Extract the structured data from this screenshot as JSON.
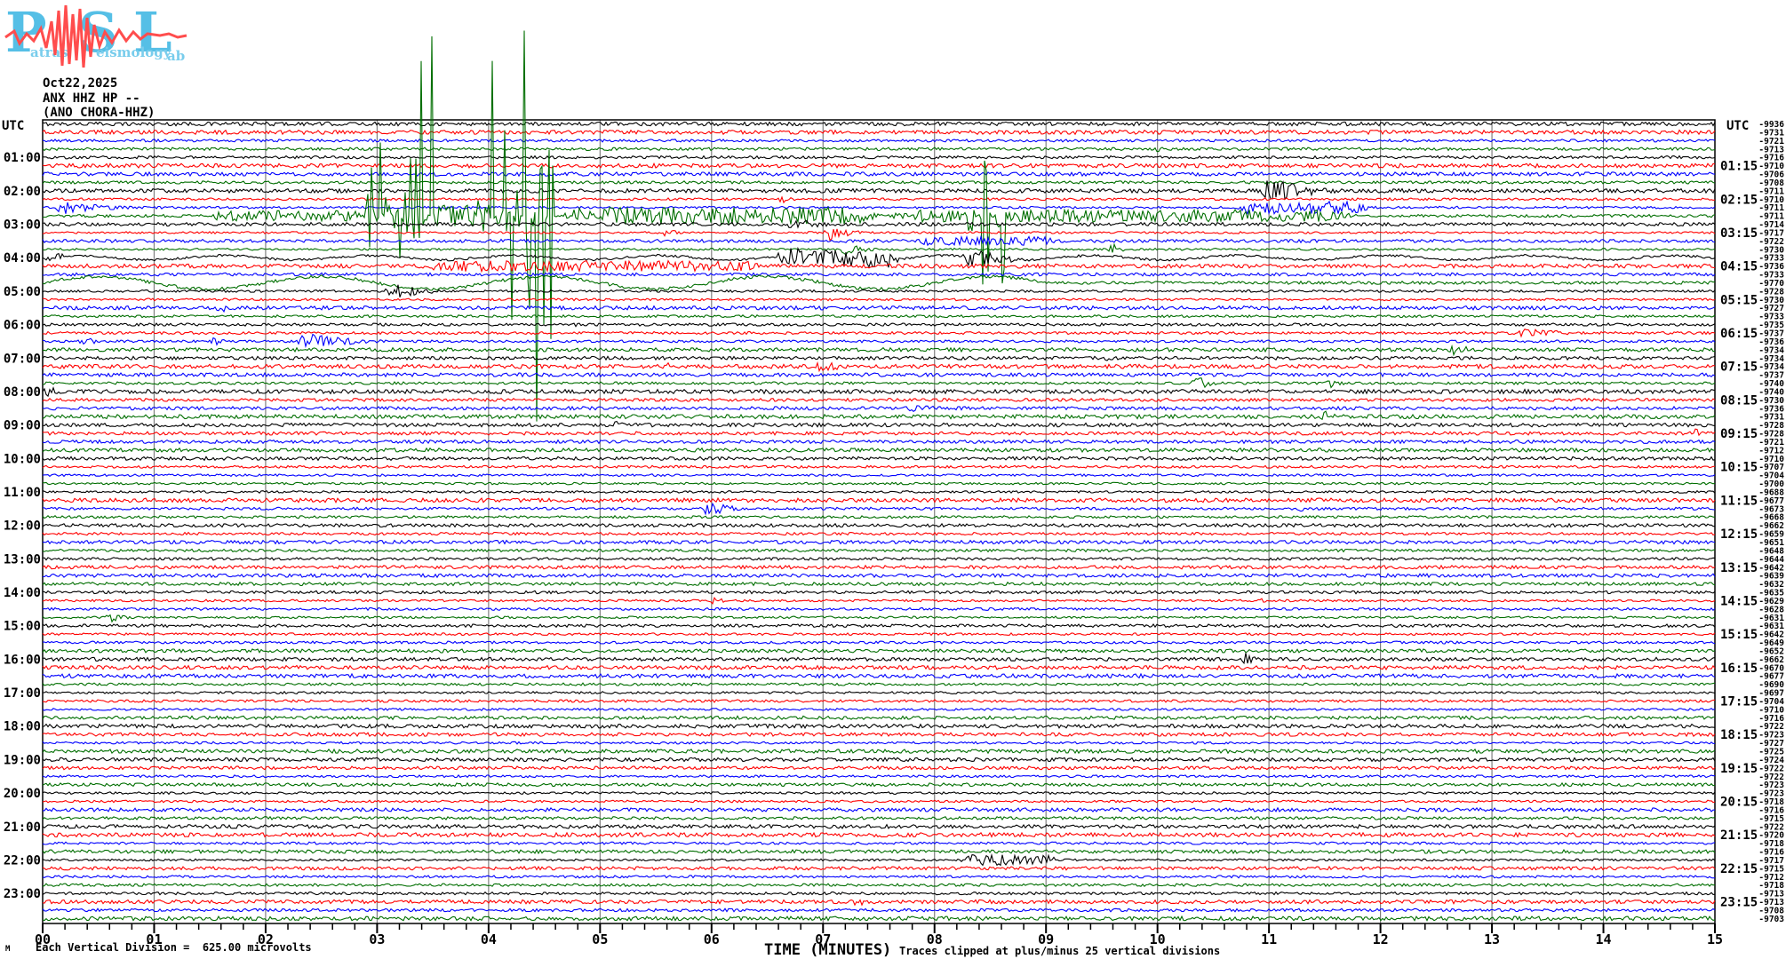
{
  "logo": {
    "letters": [
      "P",
      "S",
      "L"
    ],
    "words": [
      "atras",
      "eismology",
      "ab"
    ]
  },
  "header": {
    "date": "Oct22,2025",
    "station": "ANX HHZ HP --",
    "station_paren": "(ANO CHORA-HHZ)"
  },
  "axes": {
    "utc_left": "UTC",
    "utc_right": "UTC",
    "xlabel": "TIME (MINUTES)",
    "x_ticks": [
      "00",
      "01",
      "02",
      "03",
      "04",
      "05",
      "06",
      "07",
      "08",
      "09",
      "10",
      "11",
      "12",
      "13",
      "14",
      "15"
    ]
  },
  "footer": {
    "mark": "M",
    "scale_note": "Each Vertical Division =  625.00 microvolts",
    "clip_note": "Traces clipped at plus/minus 25 vertical divisions"
  },
  "chart_data": {
    "type": "line",
    "title": "ANX HHZ HP -- (ANO CHORA-HHZ) Oct22,2025 helicorder",
    "x_range_minutes": [
      0,
      15
    ],
    "minutes_per_line": 15,
    "lines_per_hour": 4,
    "num_traces": 96,
    "clip_divisions": 25,
    "volts_per_division": "625.00 microvolts",
    "color_cycle": [
      "black",
      "red",
      "blue",
      "green"
    ],
    "colors": {
      "black": "#000000",
      "red": "#ff0000",
      "blue": "#0000ff",
      "green": "#006e00",
      "grid": "#808080"
    },
    "left_hour_labels": [
      "01:00",
      "02:00",
      "03:00",
      "04:00",
      "05:00",
      "06:00",
      "07:00",
      "08:00",
      "09:00",
      "10:00",
      "11:00",
      "12:00",
      "13:00",
      "14:00",
      "15:00",
      "16:00",
      "17:00",
      "18:00",
      "19:00",
      "20:00",
      "21:00",
      "22:00",
      "23:00"
    ],
    "right_hour_labels": [
      "01:15",
      "02:15",
      "03:15",
      "04:15",
      "05:15",
      "06:15",
      "07:15",
      "08:15",
      "09:15",
      "10:15",
      "11:15",
      "12:15",
      "13:15",
      "14:15",
      "15:15",
      "16:15",
      "17:15",
      "18:15",
      "19:15",
      "20:15",
      "21:15",
      "22:15",
      "23:15"
    ],
    "trace_offset_values": [
      -9936,
      -9731,
      -9721,
      -9713,
      -9716,
      -9710,
      -9706,
      -9708,
      -9711,
      -9710,
      -9711,
      -9711,
      -9714,
      -9717,
      -9722,
      -9730,
      -9733,
      -9736,
      -9733,
      -9770,
      -9728,
      -9730,
      -9727,
      -9733,
      -9735,
      -9737,
      -9736,
      -9734,
      -9734,
      -9734,
      -9737,
      -9740,
      -9740,
      -9730,
      -9736,
      -9731,
      -9728,
      -9728,
      -9721,
      -9712,
      -9710,
      -9707,
      -9704,
      -9700,
      -9688,
      -9677,
      -9673,
      -9668,
      -9662,
      -9659,
      -9651,
      -9648,
      -9644,
      -9642,
      -9639,
      -9632,
      -9635,
      -9629,
      -9628,
      -9631,
      -9631,
      -9642,
      -9649,
      -9652,
      -9662,
      -9670,
      -9677,
      -9690,
      -9697,
      -9704,
      -9710,
      -9716,
      -9722,
      -9723,
      -9727,
      -9725,
      -9724,
      -9722,
      -9722,
      -9723,
      -9723,
      -9718,
      -9716,
      -9715,
      -9722,
      -9720,
      -9718,
      -9716,
      -9717,
      -9715,
      -9712,
      -9718,
      -9713,
      -9713,
      -9708,
      -9703
    ],
    "events": [
      {
        "row": 3,
        "t0": 9.95,
        "t1": 10.35,
        "amp": 6,
        "kind": "burst"
      },
      {
        "row": 5,
        "t0": 4.95,
        "t1": 5.65,
        "amp": 4,
        "kind": "burst"
      },
      {
        "row": 8,
        "t0": 10.9,
        "t1": 11.85,
        "amp": 22,
        "kind": "burst"
      },
      {
        "row": 9,
        "t0": 6.6,
        "t1": 6.85,
        "amp": 8,
        "kind": "burst"
      },
      {
        "row": 10,
        "t0": 0.05,
        "t1": 1.2,
        "amp": 11,
        "kind": "burst"
      },
      {
        "row": 10,
        "t0": 10.7,
        "t1": 11.9,
        "amp": 7,
        "kind": "band"
      },
      {
        "row": 11,
        "t0": 1.45,
        "t1": 2.9,
        "amp": 6,
        "kind": "band"
      },
      {
        "row": 11,
        "t0": 2.9,
        "t1": 3.5,
        "amp": 235,
        "kind": "spikes"
      },
      {
        "row": 11,
        "t0": 3.5,
        "t1": 4.0,
        "amp": 18,
        "kind": "band"
      },
      {
        "row": 11,
        "t0": 4.0,
        "t1": 4.6,
        "amp": 235,
        "kind": "spikes"
      },
      {
        "row": 11,
        "t0": 4.6,
        "t1": 7.5,
        "amp": 10,
        "kind": "band"
      },
      {
        "row": 11,
        "t0": 7.5,
        "t1": 11.8,
        "amp": 7,
        "kind": "band"
      },
      {
        "row": 11,
        "t0": 8.3,
        "t1": 8.65,
        "amp": 90,
        "kind": "spikes"
      },
      {
        "row": 12,
        "t0": 6.6,
        "t1": 7.75,
        "amp": 8,
        "kind": "burst"
      },
      {
        "row": 13,
        "t0": 5.55,
        "t1": 5.85,
        "amp": 8,
        "kind": "burst"
      },
      {
        "row": 13,
        "t0": 7.0,
        "t1": 7.55,
        "amp": 13,
        "kind": "burst"
      },
      {
        "row": 14,
        "t0": 7.75,
        "t1": 9.1,
        "amp": 5,
        "kind": "band"
      },
      {
        "row": 15,
        "t0": 7.15,
        "t1": 7.65,
        "amp": 11,
        "kind": "burst"
      },
      {
        "row": 15,
        "t0": 9.55,
        "t1": 9.95,
        "amp": 9,
        "kind": "burst"
      },
      {
        "row": 16,
        "t0": 0.0,
        "t1": 0.45,
        "amp": 8,
        "kind": "burst"
      },
      {
        "row": 16,
        "t0": 0.0,
        "t1": 15.0,
        "amp": 2.5,
        "kind": "sine",
        "period": 1.3
      },
      {
        "row": 16,
        "t0": 6.55,
        "t1": 7.7,
        "amp": 9,
        "kind": "band"
      },
      {
        "row": 16,
        "t0": 8.25,
        "t1": 8.95,
        "amp": 20,
        "kind": "burst"
      },
      {
        "row": 17,
        "t0": 3.3,
        "t1": 6.5,
        "amp": 6,
        "kind": "band"
      },
      {
        "row": 19,
        "t0": 0.0,
        "t1": 9.0,
        "amp": 7,
        "kind": "sine",
        "period": 2.0
      },
      {
        "row": 20,
        "t0": 3.05,
        "t1": 3.95,
        "amp": 12,
        "kind": "burst"
      },
      {
        "row": 22,
        "t0": 1.55,
        "t1": 1.8,
        "amp": 13,
        "kind": "burst"
      },
      {
        "row": 24,
        "t0": 4.75,
        "t1": 5.1,
        "amp": 5,
        "kind": "burst"
      },
      {
        "row": 25,
        "t0": 13.2,
        "t1": 14.1,
        "amp": 9,
        "kind": "burst"
      },
      {
        "row": 26,
        "t0": 0.3,
        "t1": 0.85,
        "amp": 7,
        "kind": "burst"
      },
      {
        "row": 26,
        "t0": 1.5,
        "t1": 1.8,
        "amp": 8,
        "kind": "burst"
      },
      {
        "row": 26,
        "t0": 2.25,
        "t1": 3.35,
        "amp": 14,
        "kind": "burst"
      },
      {
        "row": 27,
        "t0": 12.6,
        "t1": 13.1,
        "amp": 11,
        "kind": "burst"
      },
      {
        "row": 28,
        "t0": 9.5,
        "t1": 9.8,
        "amp": 6,
        "kind": "burst"
      },
      {
        "row": 29,
        "t0": 5.55,
        "t1": 5.9,
        "amp": 7,
        "kind": "burst"
      },
      {
        "row": 29,
        "t0": 6.9,
        "t1": 7.5,
        "amp": 11,
        "kind": "burst"
      },
      {
        "row": 31,
        "t0": 10.3,
        "t1": 10.7,
        "amp": 12,
        "kind": "burst"
      },
      {
        "row": 31,
        "t0": 11.5,
        "t1": 11.9,
        "amp": 8,
        "kind": "burst"
      },
      {
        "row": 32,
        "t0": 0.0,
        "t1": 0.35,
        "amp": 10,
        "kind": "burst"
      },
      {
        "row": 34,
        "t0": 7.7,
        "t1": 8.6,
        "amp": 6,
        "kind": "burst"
      },
      {
        "row": 35,
        "t0": 11.45,
        "t1": 11.85,
        "amp": 10,
        "kind": "burst"
      },
      {
        "row": 36,
        "t0": 5.1,
        "t1": 5.5,
        "amp": 7,
        "kind": "burst"
      },
      {
        "row": 37,
        "t0": 14.8,
        "t1": 15.0,
        "amp": 10,
        "kind": "burst"
      },
      {
        "row": 46,
        "t0": 5.9,
        "t1": 6.45,
        "amp": 14,
        "kind": "burst"
      },
      {
        "row": 46,
        "t0": 11.25,
        "t1": 11.6,
        "amp": 5,
        "kind": "burst"
      },
      {
        "row": 57,
        "t0": 5.95,
        "t1": 6.3,
        "amp": 9,
        "kind": "burst"
      },
      {
        "row": 57,
        "t0": 10.9,
        "t1": 11.05,
        "amp": 7,
        "kind": "burst"
      },
      {
        "row": 59,
        "t0": 0.55,
        "t1": 1.0,
        "amp": 8,
        "kind": "burst"
      },
      {
        "row": 64,
        "t0": 10.75,
        "t1": 11.05,
        "amp": 12,
        "kind": "burst"
      },
      {
        "row": 88,
        "t0": 8.2,
        "t1": 9.1,
        "amp": 6,
        "kind": "band"
      },
      {
        "row": 93,
        "t0": 7.25,
        "t1": 7.65,
        "amp": 8,
        "kind": "burst"
      }
    ]
  }
}
